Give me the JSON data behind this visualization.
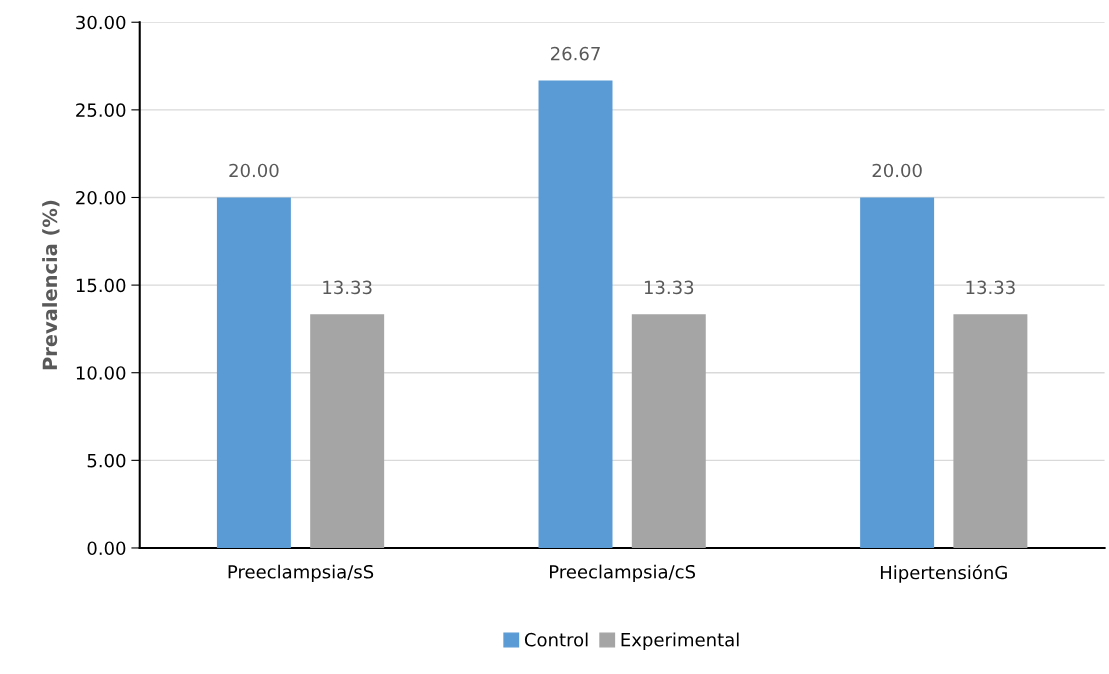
{
  "chart_data": {
    "type": "bar",
    "ylabel": "Prevalencia (%)",
    "categories": [
      "Preeclampsia/sS",
      "Preeclampsia/cS",
      "HipertensiónG"
    ],
    "series": [
      {
        "name": "Control",
        "color": "#5b9bd5",
        "values": [
          20.0,
          26.67,
          20.0
        ],
        "value_labels": [
          "20.00",
          "26.67",
          "20.00"
        ]
      },
      {
        "name": "Experimental",
        "color": "#a5a5a5",
        "values": [
          13.33,
          13.33,
          13.33
        ],
        "value_labels": [
          "13.33",
          "13.33",
          "13.33"
        ]
      }
    ],
    "ylim": [
      0,
      30
    ],
    "yticks": [
      {
        "value": 0,
        "label": "0.00"
      },
      {
        "value": 5,
        "label": "5.00"
      },
      {
        "value": 10,
        "label": "10.00"
      },
      {
        "value": 15,
        "label": "15.00"
      },
      {
        "value": 20,
        "label": "20.00"
      },
      {
        "value": 25,
        "label": "25.00"
      },
      {
        "value": 30,
        "label": "30.00"
      }
    ],
    "grid": "y",
    "legend": "bottom"
  }
}
